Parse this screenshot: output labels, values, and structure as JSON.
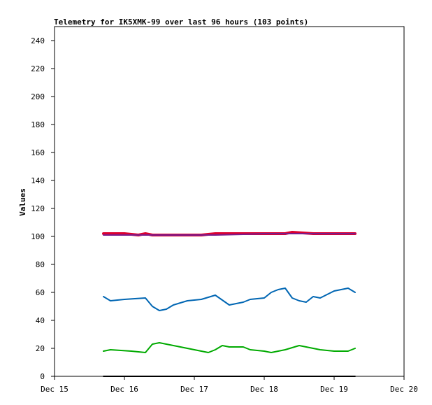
{
  "chart_data": {
    "type": "line",
    "title": "Telemetry for IK5XMK-99 over last 96 hours (103 points)",
    "xlabel": "",
    "ylabel": "Values",
    "xlim": [
      "Dec 15",
      "Dec 20"
    ],
    "ylim": [
      0,
      250
    ],
    "x_ticks": [
      "Dec 15",
      "Dec 16",
      "Dec 17",
      "Dec 18",
      "Dec 19",
      "Dec 20"
    ],
    "y_ticks": [
      0,
      20,
      40,
      60,
      80,
      100,
      120,
      140,
      160,
      180,
      200,
      220,
      240
    ],
    "grid": false,
    "legend": "none",
    "series": [
      {
        "color": "#dc0030",
        "x": [
          "Dec 15 16:48",
          "Dec 15 19:12",
          "Dec 16 00:00",
          "Dec 16 04:48",
          "Dec 16 07:12",
          "Dec 16 09:36",
          "Dec 16 14:24",
          "Dec 17 02:24",
          "Dec 17 07:12",
          "Dec 17 12:00",
          "Dec 17 19:12",
          "Dec 18 00:00",
          "Dec 18 07:12",
          "Dec 18 09:36",
          "Dec 18 16:48",
          "Dec 19 07:12"
        ],
        "values": [
          102,
          102,
          102,
          101,
          102,
          101,
          101,
          101,
          102,
          102,
          102,
          102,
          102,
          103,
          102,
          102
        ]
      },
      {
        "color": "#7a1c8c",
        "x": [
          "Dec 15 16:48",
          "Dec 16 07:12",
          "Dec 16 16:48",
          "Dec 17 07:12",
          "Dec 17 16:48",
          "Dec 18 00:00",
          "Dec 18 16:48",
          "Dec 19 07:12"
        ],
        "values": [
          101,
          101,
          101,
          101,
          101.5,
          102,
          102,
          102
        ]
      },
      {
        "color": "#0066b3",
        "x": [
          "Dec 15 16:48",
          "Dec 15 19:12",
          "Dec 16 00:00",
          "Dec 16 07:12",
          "Dec 16 09:36",
          "Dec 16 12:00",
          "Dec 16 14:24",
          "Dec 16 16:48",
          "Dec 16 21:36",
          "Dec 17 02:24",
          "Dec 17 07:12",
          "Dec 17 12:00",
          "Dec 17 14:24",
          "Dec 17 16:48",
          "Dec 17 19:12",
          "Dec 18 00:00",
          "Dec 18 02:24",
          "Dec 18 04:48",
          "Dec 18 07:12",
          "Dec 18 09:36",
          "Dec 18 12:00",
          "Dec 18 14:24",
          "Dec 18 16:48",
          "Dec 18 19:12",
          "Dec 19 00:00",
          "Dec 19 04:48",
          "Dec 19 07:12"
        ],
        "values": [
          57,
          54,
          55,
          56,
          50,
          47,
          48,
          51,
          54,
          55,
          58,
          51,
          52,
          53,
          55,
          56,
          60,
          62,
          63,
          56,
          54,
          53,
          57,
          56,
          61,
          63,
          60
        ]
      },
      {
        "color": "#00aa00",
        "x": [
          "Dec 15 16:48",
          "Dec 15 19:12",
          "Dec 16 02:24",
          "Dec 16 07:12",
          "Dec 16 09:36",
          "Dec 16 12:00",
          "Dec 16 16:48",
          "Dec 17 02:24",
          "Dec 17 04:48",
          "Dec 17 07:12",
          "Dec 17 09:36",
          "Dec 17 12:00",
          "Dec 17 16:48",
          "Dec 17 19:12",
          "Dec 18 00:00",
          "Dec 18 02:24",
          "Dec 18 07:12",
          "Dec 18 12:00",
          "Dec 18 14:24",
          "Dec 18 19:12",
          "Dec 19 00:00",
          "Dec 19 04:48",
          "Dec 19 07:12"
        ],
        "values": [
          18,
          19,
          18,
          17,
          23,
          24,
          22,
          18,
          17,
          19,
          22,
          21,
          21,
          19,
          18,
          17,
          19,
          22,
          21,
          19,
          18,
          18,
          20
        ]
      },
      {
        "color": "#000000",
        "x": [
          "Dec 15 16:48",
          "Dec 19 07:12"
        ],
        "values": [
          0,
          0
        ]
      }
    ]
  }
}
